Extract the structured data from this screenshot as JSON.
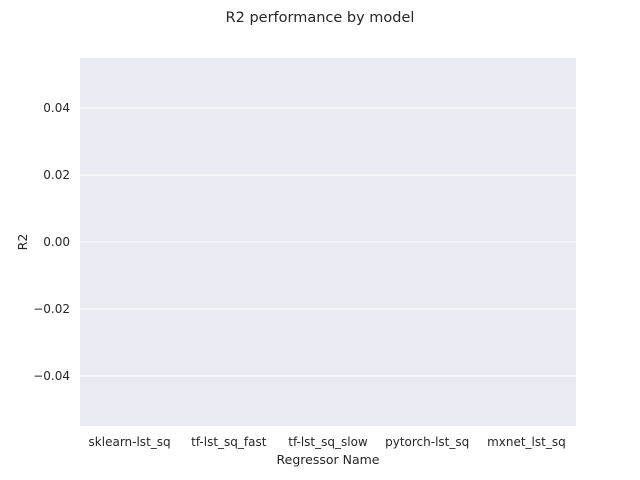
{
  "chart_data": {
    "type": "bar",
    "title": "R2 performance by model",
    "xlabel": "Regressor Name",
    "ylabel": "R2",
    "categories": [
      "sklearn-lst_sq",
      "tf-lst_sq_fast",
      "tf-lst_sq_slow",
      "pytorch-lst_sq",
      "mxnet_lst_sq"
    ],
    "values": [
      0,
      0,
      0,
      0,
      0
    ],
    "ylim": [
      -0.055,
      0.055
    ],
    "yticks": [
      0.04,
      0.02,
      0.0,
      -0.02,
      -0.04
    ],
    "ytick_labels": [
      "0.04",
      "0.02",
      "0.00",
      "−0.02",
      "−0.04"
    ],
    "grid": true,
    "background_color": "#eaeaf2",
    "grid_color": "#ffffff"
  }
}
